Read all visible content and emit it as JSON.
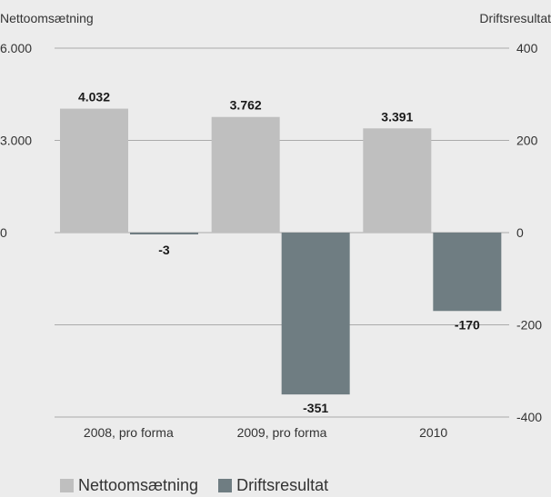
{
  "chart_data": {
    "type": "bar",
    "categories": [
      "2008, pro forma",
      "2009, pro forma",
      "2010"
    ],
    "series": [
      {
        "name": "Nettoomsætning",
        "axis": "left",
        "values": [
          4032,
          3762,
          3391
        ],
        "labels": [
          "4.032",
          "3.762",
          "3.391"
        ],
        "color": "#bfbfbf"
      },
      {
        "name": "Driftsresultat",
        "axis": "right",
        "values": [
          -3,
          -351,
          -170
        ],
        "labels": [
          "-3",
          "-351",
          "-170"
        ],
        "color": "#6f7d82"
      }
    ],
    "y_left": {
      "label": "Nettoomsætning",
      "ylim": [
        -6000,
        6000
      ],
      "ticks": [
        6000,
        3000,
        0
      ],
      "tick_labels": [
        "6.000",
        "3.000",
        "0"
      ]
    },
    "y_right": {
      "label": "Driftsresultat",
      "ylim": [
        -400,
        400
      ],
      "ticks": [
        400,
        200,
        0,
        -200,
        -400
      ],
      "tick_labels": [
        "400",
        "200",
        "0",
        "-200",
        "-400"
      ]
    },
    "grid": true,
    "legend_position": "bottom-left",
    "colors": {
      "background": "#ececec",
      "grid": "#aaaaaa"
    }
  }
}
